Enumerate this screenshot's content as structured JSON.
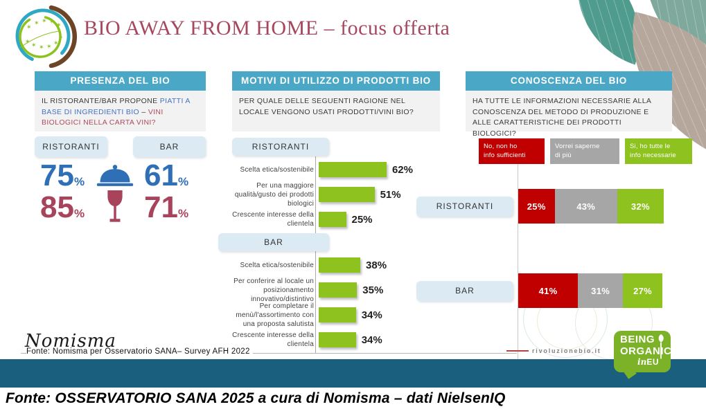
{
  "title": "BIO AWAY FROM HOME – focus offerta",
  "colors": {
    "section_header_teal": "#4ba7c6",
    "label_box_blue": "#dbeaf3",
    "bar_green": "#8dc21f",
    "stat_blue": "#2e6fb6",
    "stat_maroon": "#a8435c",
    "title_maroon": "#a5485f",
    "footer_teal": "#1b5f7e",
    "being_organic_green": "#7cb228",
    "legend_red": "#c00000",
    "legend_gray": "#a6a6a6"
  },
  "presenza": {
    "header": "PRESENZA DEL BIO",
    "q_part1": "IL RISTORANTE/BAR PROPONE ",
    "q_part2_blue": "PIATTI A BASE DI INGREDIENTI BIO",
    "q_part3": " – ",
    "q_part4_red": "VINI BIOLOGICI NELLA CARTA VINI?",
    "col_left": "RISTORANTI",
    "col_right": "BAR"
  },
  "motivi": {
    "header": "MOTIVI DI UTILIZZO DI PRODOTTI BIO",
    "question": "PER QUALE DELLE SEGUENTI RAGIONE NEL LOCALE VENGONO USATI PRODOTTI/VINI BIO?"
  },
  "conoscenza": {
    "header": "CONOSCENZA DEL BIO",
    "question": "HA TUTTE LE INFORMAZIONI NECESSARIE ALLA CONOSCENZA DEL METODO DI PRODUZIONE E ALLE CARATTERISTICHE DEI PRODOTTI BIOLOGICI?"
  },
  "footer": {
    "nomisma_logo": "Nomisma",
    "source_small": "Fonte: Nomisma per Osservatorio SANA– Survey AFH 2022",
    "watermark": "rivoluzionebio.it",
    "source_main": "Fonte: OSSERVATORIO SANA 2025 a cura di Nomisma – dati NielsenIQ",
    "being_organic": {
      "l1": "BEING",
      "l2": "ORGANIC",
      "l3a": "in",
      "l3b": "EU"
    }
  },
  "chart_data": [
    {
      "id": "motivi-utilizzo",
      "type": "bar",
      "orientation": "horizontal",
      "unit": "%",
      "xlim": [
        0,
        100
      ],
      "bar_color": "#8dc21f",
      "title": "MOTIVI DI UTILIZZO DI PRODOTTI BIO",
      "groups": [
        {
          "label": "RISTORANTI",
          "bars": [
            {
              "category": "Scelta etica/sostenibile",
              "value": 62
            },
            {
              "category": "Per una maggiore qualità/gusto dei prodotti biologici",
              "value": 51
            },
            {
              "category": "Crescente interesse della clientela",
              "value": 25
            }
          ]
        },
        {
          "label": "BAR",
          "bars": [
            {
              "category": "Scelta etica/sostenibile",
              "value": 38
            },
            {
              "category": "Per conferire al locale un posizionamento innovativo/distintivo",
              "value": 35
            },
            {
              "category": "Per completare il menù/l'assortimento con una proposta salutista",
              "value": 34
            },
            {
              "category": "Crescente interesse della clientela",
              "value": 34
            }
          ]
        }
      ]
    },
    {
      "id": "conoscenza-bio",
      "type": "stacked-bar",
      "orientation": "horizontal",
      "unit": "%",
      "title": "CONOSCENZA DEL BIO",
      "categories": [
        "RISTORANTI",
        "BAR"
      ],
      "series": [
        {
          "name": "No, non ho info sufficienti",
          "label_lines": "No, non ho<br>info sufficienti",
          "color": "#c00000",
          "values": [
            25,
            41
          ]
        },
        {
          "name": "Vorrei saperne di più",
          "label_lines": "Vorrei saperne<br>di più",
          "color": "#a6a6a6",
          "values": [
            43,
            31
          ]
        },
        {
          "name": "Si, ho tutte le info necessarie",
          "label_lines": "Si, ho tutte le<br>info necessarie",
          "color": "#8dc21f",
          "values": [
            32,
            27
          ]
        }
      ],
      "legend_position": "top"
    },
    {
      "id": "presenza-kpi",
      "type": "table",
      "unit": "%",
      "title": "PRESENZA DEL BIO",
      "columns": [
        "RISTORANTI",
        "BAR"
      ],
      "rows": [
        {
          "icon": "cloche-icon",
          "label": "piatti a base di ingredienti bio",
          "ristoranti": 75,
          "bar": 61
        },
        {
          "icon": "wine-glass-icon",
          "label": "vini biologici nella carta vini",
          "ristoranti": 85,
          "bar": 71
        }
      ]
    }
  ]
}
